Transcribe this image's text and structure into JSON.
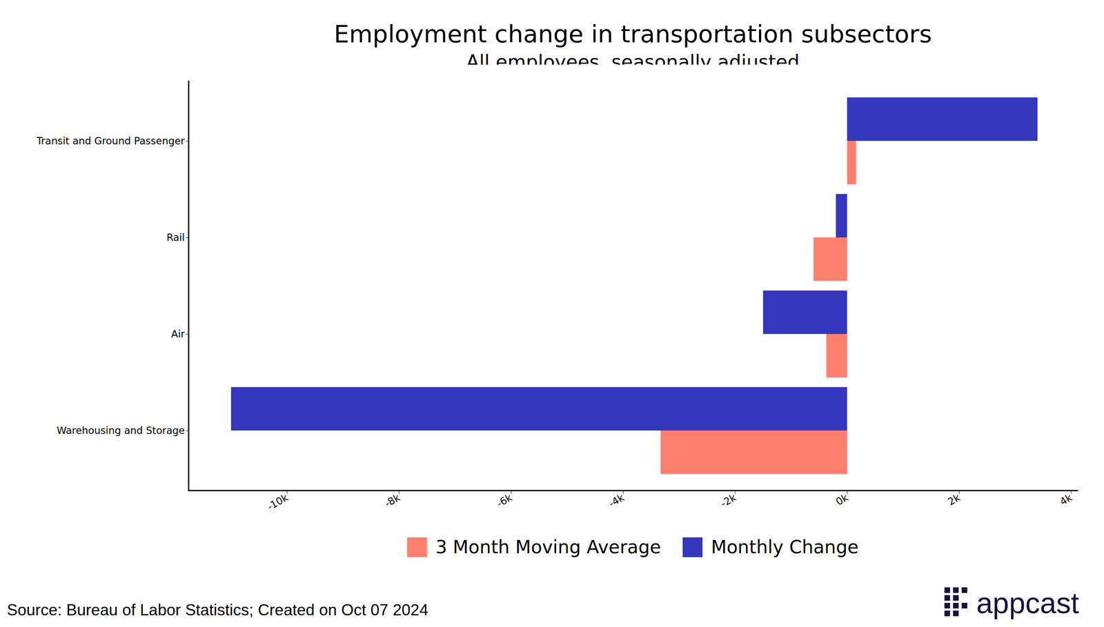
{
  "chart_data": {
    "type": "bar",
    "orientation": "horizontal",
    "title": "Employment change in transportation subsectors",
    "subtitle": "All employees, seasonally adjusted",
    "categories": [
      "Transit and Ground Passenger",
      "Rail",
      "Air",
      "Warehousing and Storage"
    ],
    "series": [
      {
        "name": "3 Month Moving Average",
        "color": "#ff7f6e",
        "values": [
          160,
          -600,
          -370,
          -3330
        ]
      },
      {
        "name": "Monthly Change",
        "color": "#3436bc",
        "values": [
          3400,
          -200,
          -1500,
          -11000
        ]
      }
    ],
    "xlim": [
      -11760,
      4110
    ],
    "xticks": [
      {
        "value": -10000,
        "label": "-10k"
      },
      {
        "value": -8000,
        "label": "-8k"
      },
      {
        "value": -6000,
        "label": "-6k"
      },
      {
        "value": -4000,
        "label": "-4k"
      },
      {
        "value": -2000,
        "label": "-2k"
      },
      {
        "value": 0,
        "label": "0k"
      },
      {
        "value": 2000,
        "label": "2k"
      },
      {
        "value": 4000,
        "label": "4k"
      }
    ],
    "grid": false,
    "legend": "bottom",
    "caption": "Source: Bureau of Labor Statistics; Created on Oct 07 2024",
    "logo": "appcast"
  }
}
